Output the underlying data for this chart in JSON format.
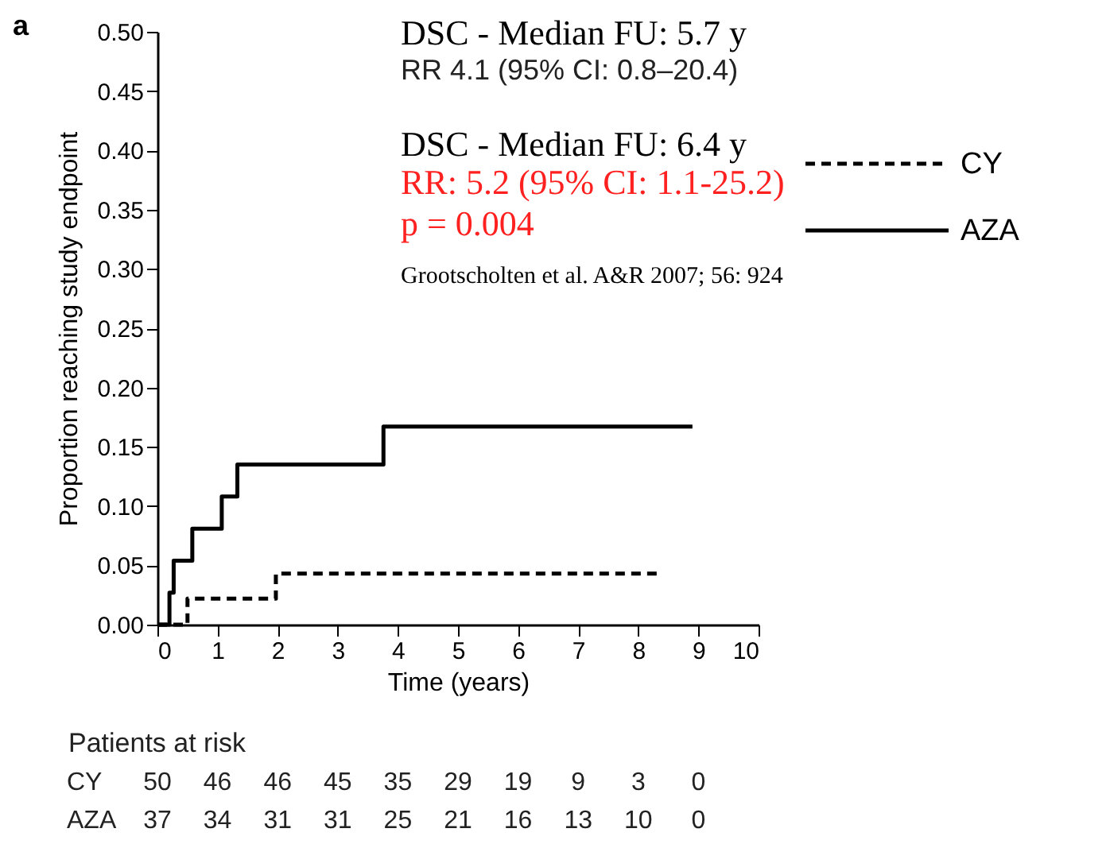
{
  "chart_data": {
    "type": "step",
    "xlabel": "Time (years)",
    "ylabel": "Proportion reaching study endpoint",
    "series": [
      {
        "name": "CY",
        "color": "#000000",
        "line_style": "dashed",
        "x": [
          0,
          0.5,
          1.97,
          8.37
        ],
        "values": [
          0,
          0.022,
          0.043,
          0.043
        ]
      },
      {
        "name": "AZA",
        "color": "#000000",
        "line_style": "solid",
        "x": [
          0,
          0.2,
          0.27,
          0.58,
          1.07,
          1.33,
          3.76,
          8.9
        ],
        "values": [
          0,
          0.027,
          0.054,
          0.081,
          0.108,
          0.135,
          0.167,
          0.167
        ]
      }
    ],
    "xlim": [
      0,
      10
    ],
    "xticks": [
      0,
      1,
      2,
      3,
      4,
      5,
      6,
      7,
      8,
      9,
      10
    ],
    "ylim": [
      0,
      0.5
    ],
    "yticks": [
      {
        "value": 0,
        "label": "0.00"
      },
      {
        "value": 0.05,
        "label": "0.05"
      },
      {
        "value": 0.1,
        "label": "0.10"
      },
      {
        "value": 0.15,
        "label": "0.15"
      },
      {
        "value": 0.2,
        "label": "0.20"
      },
      {
        "value": 0.25,
        "label": "0.25"
      },
      {
        "value": 0.3,
        "label": "0.30"
      },
      {
        "value": 0.35,
        "label": "0.35"
      },
      {
        "value": 0.4,
        "label": "0.40"
      },
      {
        "value": 0.45,
        "label": "0.45"
      },
      {
        "value": 0.5,
        "label": "0.50"
      }
    ],
    "grid": false,
    "legend": "right",
    "annotations": [
      "a",
      "DSC - Median FU: 5.7 y",
      "RR 4.1 (95% CI: 0.8–20.4)",
      "DSC - Median FU: 6.4 y",
      "RR: 5.2 (95% CI: 1.1-25.2)",
      "p = 0.004",
      "Grootscholten et al. A&R 2007; 56: 924",
      "Patients at risk",
      "CY 50 46 46 45 35 29 19 9 3 0",
      "AZA 37 34 31 31 25 21 16 13 10 0"
    ]
  }
}
